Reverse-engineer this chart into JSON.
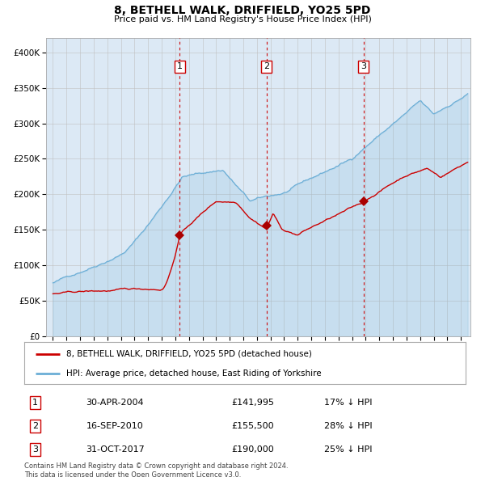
{
  "title": "8, BETHELL WALK, DRIFFIELD, YO25 5PD",
  "subtitle": "Price paid vs. HM Land Registry's House Price Index (HPI)",
  "background_color": "#ffffff",
  "plot_bg_color": "#dce9f5",
  "ylim": [
    0,
    420000
  ],
  "yticks": [
    0,
    50000,
    100000,
    150000,
    200000,
    250000,
    300000,
    350000,
    400000
  ],
  "hpi_color": "#6baed6",
  "price_color": "#cc0000",
  "sale_marker_color": "#aa0000",
  "vline_color": "#cc0000",
  "purchases": [
    {
      "date_num": 2004.33,
      "price": 141995,
      "label": "1"
    },
    {
      "date_num": 2010.71,
      "price": 155500,
      "label": "2"
    },
    {
      "date_num": 2017.83,
      "price": 190000,
      "label": "3"
    }
  ],
  "legend_house_label": "8, BETHELL WALK, DRIFFIELD, YO25 5PD (detached house)",
  "legend_hpi_label": "HPI: Average price, detached house, East Riding of Yorkshire",
  "table_rows": [
    {
      "num": "1",
      "date": "30-APR-2004",
      "price": "£141,995",
      "pct": "17% ↓ HPI"
    },
    {
      "num": "2",
      "date": "16-SEP-2010",
      "price": "£155,500",
      "pct": "28% ↓ HPI"
    },
    {
      "num": "3",
      "date": "31-OCT-2017",
      "price": "£190,000",
      "pct": "25% ↓ HPI"
    }
  ],
  "footer": "Contains HM Land Registry data © Crown copyright and database right 2024.\nThis data is licensed under the Open Government Licence v3.0.",
  "xstart": 1995,
  "xend": 2025
}
